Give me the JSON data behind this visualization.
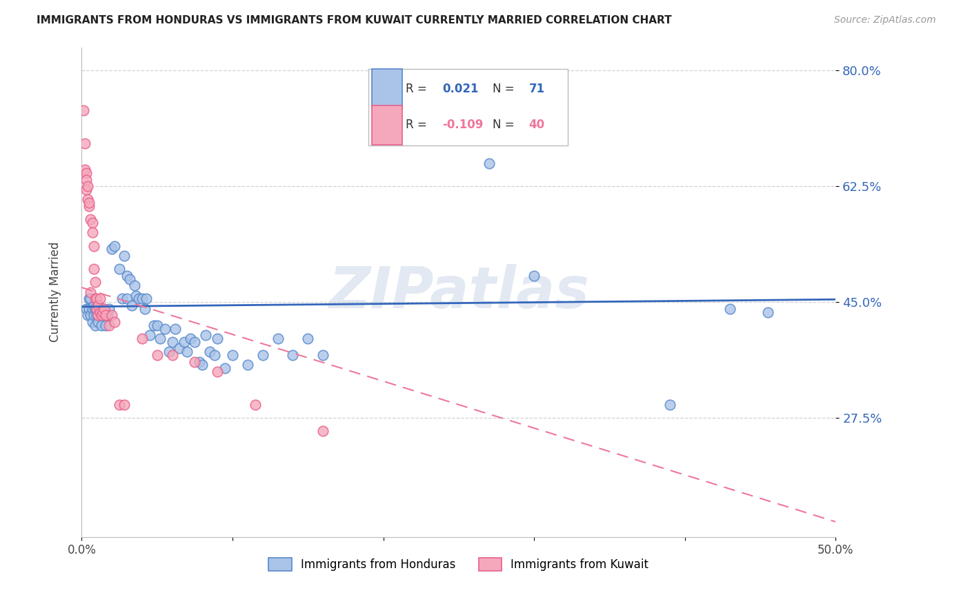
{
  "title": "IMMIGRANTS FROM HONDURAS VS IMMIGRANTS FROM KUWAIT CURRENTLY MARRIED CORRELATION CHART",
  "source": "Source: ZipAtlas.com",
  "ylabel": "Currently Married",
  "x_min": 0.0,
  "x_max": 0.5,
  "y_min": 0.095,
  "y_max": 0.835,
  "y_ticks": [
    0.275,
    0.45,
    0.625,
    0.8
  ],
  "y_tick_labels": [
    "27.5%",
    "45.0%",
    "62.5%",
    "80.0%"
  ],
  "x_ticks": [
    0.0,
    0.1,
    0.2,
    0.3,
    0.4,
    0.5
  ],
  "x_tick_labels": [
    "0.0%",
    "",
    "",
    "",
    "",
    "50.0%"
  ],
  "color_honduras": "#aac4e8",
  "color_kuwait": "#f5a8bc",
  "color_honduras_edge": "#5588cc",
  "color_kuwait_edge": "#e8608a",
  "color_honduras_line": "#3366bb",
  "color_kuwait_line": "#ee7799",
  "watermark": "ZIPatlas",
  "honduras_scatter": [
    [
      0.003,
      0.44
    ],
    [
      0.004,
      0.43
    ],
    [
      0.005,
      0.455
    ],
    [
      0.005,
      0.44
    ],
    [
      0.006,
      0.43
    ],
    [
      0.006,
      0.455
    ],
    [
      0.007,
      0.44
    ],
    [
      0.007,
      0.42
    ],
    [
      0.008,
      0.445
    ],
    [
      0.008,
      0.43
    ],
    [
      0.009,
      0.44
    ],
    [
      0.009,
      0.415
    ],
    [
      0.01,
      0.44
    ],
    [
      0.01,
      0.43
    ],
    [
      0.011,
      0.445
    ],
    [
      0.011,
      0.42
    ],
    [
      0.012,
      0.435
    ],
    [
      0.013,
      0.44
    ],
    [
      0.013,
      0.415
    ],
    [
      0.014,
      0.435
    ],
    [
      0.015,
      0.44
    ],
    [
      0.016,
      0.415
    ],
    [
      0.017,
      0.43
    ],
    [
      0.018,
      0.44
    ],
    [
      0.02,
      0.53
    ],
    [
      0.022,
      0.535
    ],
    [
      0.025,
      0.5
    ],
    [
      0.027,
      0.455
    ],
    [
      0.028,
      0.52
    ],
    [
      0.03,
      0.455
    ],
    [
      0.03,
      0.49
    ],
    [
      0.032,
      0.485
    ],
    [
      0.033,
      0.445
    ],
    [
      0.035,
      0.475
    ],
    [
      0.036,
      0.46
    ],
    [
      0.038,
      0.455
    ],
    [
      0.04,
      0.455
    ],
    [
      0.042,
      0.44
    ],
    [
      0.043,
      0.455
    ],
    [
      0.045,
      0.4
    ],
    [
      0.048,
      0.415
    ],
    [
      0.05,
      0.415
    ],
    [
      0.052,
      0.395
    ],
    [
      0.055,
      0.41
    ],
    [
      0.058,
      0.375
    ],
    [
      0.06,
      0.39
    ],
    [
      0.062,
      0.41
    ],
    [
      0.065,
      0.38
    ],
    [
      0.068,
      0.39
    ],
    [
      0.07,
      0.375
    ],
    [
      0.072,
      0.395
    ],
    [
      0.075,
      0.39
    ],
    [
      0.078,
      0.36
    ],
    [
      0.08,
      0.355
    ],
    [
      0.082,
      0.4
    ],
    [
      0.085,
      0.375
    ],
    [
      0.088,
      0.37
    ],
    [
      0.09,
      0.395
    ],
    [
      0.095,
      0.35
    ],
    [
      0.1,
      0.37
    ],
    [
      0.11,
      0.355
    ],
    [
      0.12,
      0.37
    ],
    [
      0.13,
      0.395
    ],
    [
      0.14,
      0.37
    ],
    [
      0.15,
      0.395
    ],
    [
      0.16,
      0.37
    ],
    [
      0.27,
      0.66
    ],
    [
      0.3,
      0.49
    ],
    [
      0.39,
      0.295
    ],
    [
      0.43,
      0.44
    ],
    [
      0.455,
      0.435
    ]
  ],
  "kuwait_scatter": [
    [
      0.001,
      0.74
    ],
    [
      0.002,
      0.69
    ],
    [
      0.002,
      0.65
    ],
    [
      0.003,
      0.645
    ],
    [
      0.003,
      0.62
    ],
    [
      0.003,
      0.635
    ],
    [
      0.004,
      0.625
    ],
    [
      0.004,
      0.605
    ],
    [
      0.005,
      0.595
    ],
    [
      0.005,
      0.6
    ],
    [
      0.006,
      0.575
    ],
    [
      0.006,
      0.465
    ],
    [
      0.007,
      0.57
    ],
    [
      0.007,
      0.555
    ],
    [
      0.008,
      0.535
    ],
    [
      0.008,
      0.5
    ],
    [
      0.009,
      0.48
    ],
    [
      0.009,
      0.455
    ],
    [
      0.01,
      0.455
    ],
    [
      0.01,
      0.44
    ],
    [
      0.011,
      0.445
    ],
    [
      0.011,
      0.43
    ],
    [
      0.012,
      0.455
    ],
    [
      0.012,
      0.435
    ],
    [
      0.013,
      0.43
    ],
    [
      0.014,
      0.435
    ],
    [
      0.015,
      0.44
    ],
    [
      0.016,
      0.43
    ],
    [
      0.018,
      0.415
    ],
    [
      0.02,
      0.43
    ],
    [
      0.022,
      0.42
    ],
    [
      0.025,
      0.295
    ],
    [
      0.028,
      0.295
    ],
    [
      0.04,
      0.395
    ],
    [
      0.05,
      0.37
    ],
    [
      0.06,
      0.37
    ],
    [
      0.075,
      0.36
    ],
    [
      0.09,
      0.345
    ],
    [
      0.115,
      0.295
    ],
    [
      0.16,
      0.255
    ]
  ],
  "honduras_line_x": [
    0.0,
    0.5
  ],
  "honduras_line_y": [
    0.443,
    0.454
  ],
  "kuwait_line_x": [
    0.0,
    0.5
  ],
  "kuwait_line_y": [
    0.472,
    0.118
  ]
}
